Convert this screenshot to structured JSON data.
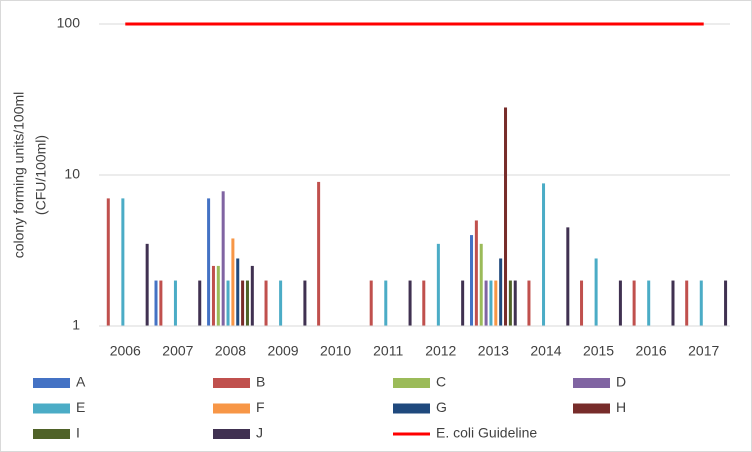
{
  "chart_data": {
    "type": "bar",
    "y_label": [
      "colony forming units/100ml",
      "(CFU/100ml)"
    ],
    "categories": [
      "2006",
      "2007",
      "2008",
      "2009",
      "2010",
      "2011",
      "2012",
      "2013",
      "2014",
      "2015",
      "2016",
      "2017"
    ],
    "log_scale": true,
    "grid": true,
    "legend": "bottom",
    "ylim": [
      1,
      100
    ],
    "yticks": [
      1,
      10,
      100
    ],
    "series": [
      {
        "name": "A",
        "color": "#4472c4",
        "values": [
          null,
          2,
          7,
          null,
          null,
          null,
          null,
          4,
          null,
          null,
          null,
          null
        ]
      },
      {
        "name": "B",
        "color": "#c0504d",
        "values": [
          7,
          2,
          2.5,
          2,
          9,
          2,
          2,
          5,
          2,
          2,
          2,
          2
        ]
      },
      {
        "name": "C",
        "color": "#9bbb59",
        "values": [
          null,
          null,
          2.5,
          null,
          null,
          null,
          null,
          3.5,
          null,
          null,
          null,
          null
        ]
      },
      {
        "name": "D",
        "color": "#8064a2",
        "values": [
          null,
          null,
          7.8,
          null,
          null,
          null,
          null,
          2,
          null,
          null,
          null,
          null
        ]
      },
      {
        "name": "E",
        "color": "#4bacc6",
        "values": [
          7,
          2,
          2,
          2,
          null,
          2,
          3.5,
          2,
          8.8,
          2.8,
          2,
          2
        ]
      },
      {
        "name": "F",
        "color": "#f79646",
        "values": [
          null,
          null,
          3.8,
          null,
          null,
          null,
          null,
          2,
          null,
          null,
          null,
          null
        ]
      },
      {
        "name": "G",
        "color": "#1f497d",
        "values": [
          null,
          null,
          2.8,
          null,
          null,
          null,
          null,
          2.8,
          null,
          null,
          null,
          null
        ]
      },
      {
        "name": "H",
        "color": "#772c2a",
        "values": [
          null,
          null,
          2,
          null,
          null,
          null,
          null,
          28,
          null,
          null,
          null,
          null
        ]
      },
      {
        "name": "I",
        "color": "#4f6228",
        "values": [
          null,
          null,
          2,
          null,
          null,
          null,
          null,
          2,
          null,
          null,
          null,
          null
        ]
      },
      {
        "name": "J",
        "color": "#403151",
        "values": [
          3.5,
          2,
          2.5,
          2,
          null,
          2,
          2,
          2,
          4.5,
          2,
          2,
          2
        ]
      },
      {
        "name": "E. coli Guideline",
        "type": "line",
        "color": "#ff0000",
        "values": [
          100,
          100,
          100,
          100,
          100,
          100,
          100,
          100,
          100,
          100,
          100,
          100
        ]
      }
    ]
  }
}
